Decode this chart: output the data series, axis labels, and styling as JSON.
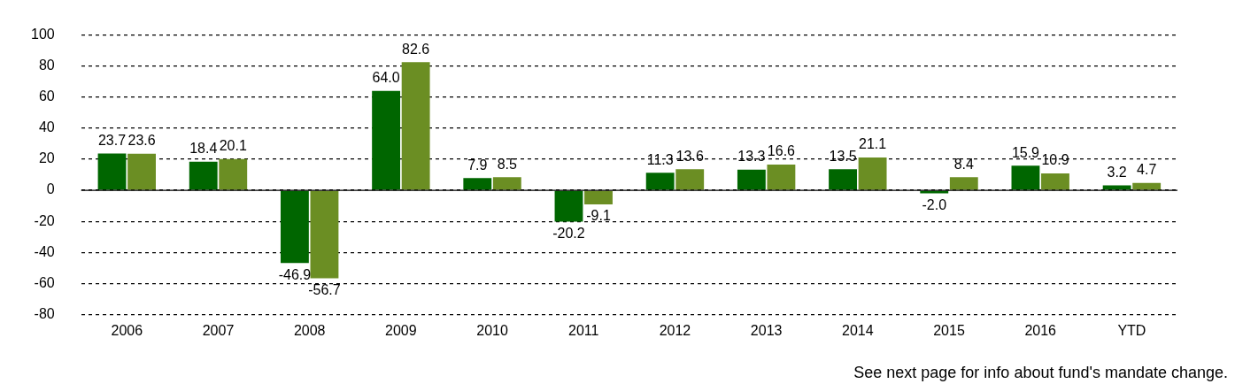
{
  "chart_data": {
    "type": "bar",
    "categories": [
      "2006",
      "2007",
      "2008",
      "2009",
      "2010",
      "2011",
      "2012",
      "2013",
      "2014",
      "2015",
      "2016",
      "YTD"
    ],
    "series": [
      {
        "color": "#006600",
        "values": [
          23.7,
          18.4,
          -46.9,
          64.0,
          7.9,
          -20.2,
          11.3,
          13.3,
          13.5,
          -2.0,
          15.9,
          3.2
        ],
        "value_labels": [
          "23.7",
          "18.4",
          "-46.9",
          "64.0",
          "7.9",
          "-20.2",
          "11.3",
          "13.3",
          "13.5",
          "-2.0",
          "15.9",
          "3.2"
        ]
      },
      {
        "color": "#6b8e23",
        "values": [
          23.6,
          20.1,
          -56.7,
          82.6,
          8.5,
          -9.1,
          13.6,
          16.6,
          21.1,
          8.4,
          10.9,
          4.7
        ],
        "value_labels": [
          "23.6",
          "20.1",
          "-56.7",
          "82.6",
          "8.5",
          "-9.1",
          "13.6",
          "16.6",
          "21.1",
          "8.4",
          "10.9",
          "4.7"
        ]
      }
    ],
    "ylim": [
      -80,
      100
    ],
    "yticks": [
      -80,
      -60,
      -40,
      -20,
      0,
      20,
      40,
      60,
      80,
      100
    ],
    "grid": "y",
    "legend": false,
    "annotations": [
      "See next page for info about fund's mandate change."
    ]
  }
}
